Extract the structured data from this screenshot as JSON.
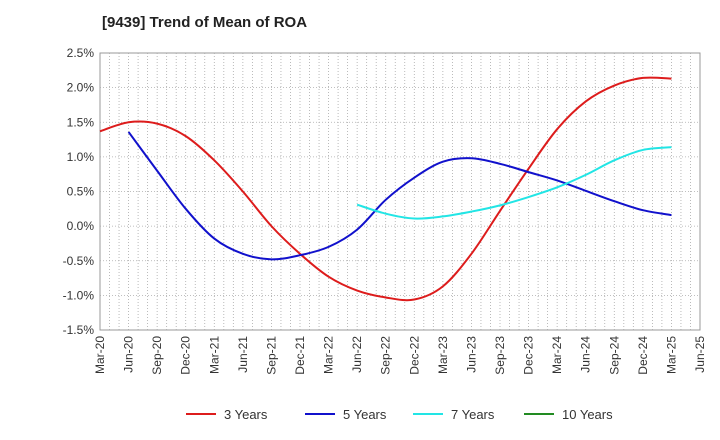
{
  "chart_data": {
    "type": "line",
    "title": "[9439]  Trend of Mean of ROA",
    "xlabel": "",
    "ylabel": "",
    "x_categories": [
      "Mar-20",
      "Jun-20",
      "Sep-20",
      "Dec-20",
      "Mar-21",
      "Jun-21",
      "Sep-21",
      "Dec-21",
      "Mar-22",
      "Jun-22",
      "Sep-22",
      "Dec-22",
      "Mar-23",
      "Jun-23",
      "Sep-23",
      "Dec-23",
      "Mar-24",
      "Jun-24",
      "Sep-24",
      "Dec-24",
      "Mar-25",
      "Jun-25"
    ],
    "y_ticks": [
      "2.5%",
      "2.0%",
      "1.5%",
      "1.0%",
      "0.5%",
      "0.0%",
      "-0.5%",
      "-1.0%",
      "-1.5%"
    ],
    "ylim": [
      -1.5,
      2.5
    ],
    "grid": "dotted",
    "legend_position": "bottom",
    "series": [
      {
        "name": "3 Years",
        "color": "#dd1c1c",
        "values": [
          1.37,
          1.5,
          1.48,
          1.3,
          0.95,
          0.5,
          0.0,
          -0.4,
          -0.73,
          -0.93,
          -1.03,
          -1.06,
          -0.87,
          -0.4,
          0.22,
          0.83,
          1.4,
          1.8,
          2.03,
          2.14,
          2.13,
          null
        ]
      },
      {
        "name": "5 Years",
        "color": "#1111cc",
        "values": [
          null,
          1.36,
          0.8,
          0.25,
          -0.18,
          -0.4,
          -0.48,
          -0.42,
          -0.3,
          -0.05,
          0.38,
          0.7,
          0.93,
          0.98,
          0.9,
          0.78,
          0.66,
          0.51,
          0.36,
          0.23,
          0.16,
          null
        ]
      },
      {
        "name": "7 Years",
        "color": "#22e5e5",
        "values": [
          null,
          null,
          null,
          null,
          null,
          null,
          null,
          null,
          null,
          0.31,
          0.18,
          0.11,
          0.14,
          0.21,
          0.3,
          0.42,
          0.56,
          0.74,
          0.95,
          1.1,
          1.14,
          null
        ]
      },
      {
        "name": "10 Years",
        "color": "#228b22",
        "values": [
          null,
          null,
          null,
          null,
          null,
          null,
          null,
          null,
          null,
          null,
          null,
          null,
          null,
          null,
          null,
          null,
          null,
          null,
          null,
          null,
          null,
          null
        ]
      }
    ]
  }
}
